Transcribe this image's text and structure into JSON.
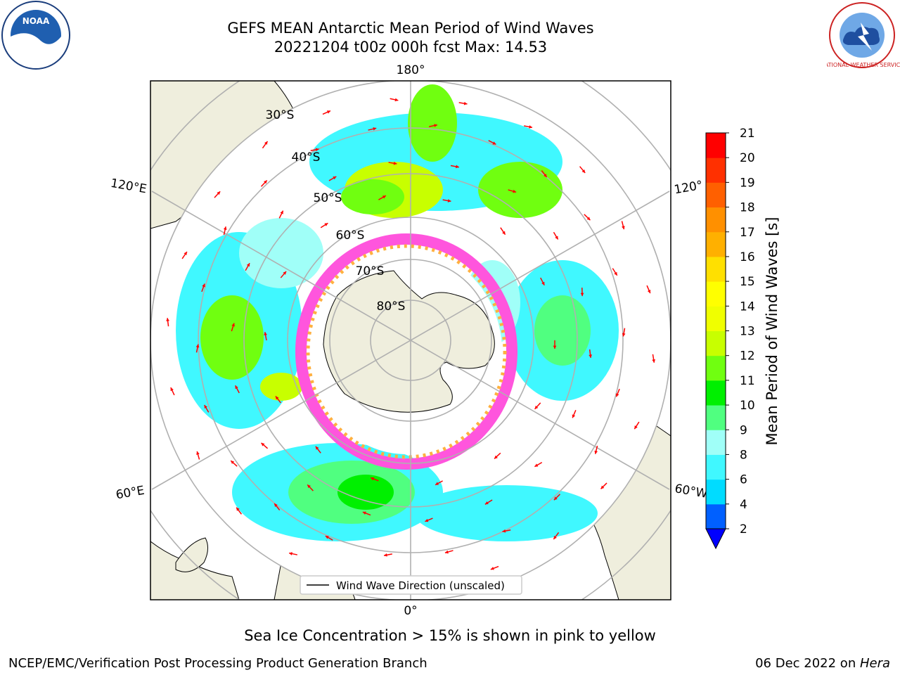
{
  "title_line1": "GEFS MEAN Antarctic Mean Period of Wind Waves",
  "title_line2": "20221204 t00z 000h fcst   Max: 14.53",
  "subtitle": "Sea Ice Concentration > 15% is shown in pink to yellow",
  "footer_left": "NCEP/EMC/Verification Post Processing Product Generation Branch",
  "footer_right_prefix": "06 Dec 2022 on ",
  "footer_right_host": "Hera",
  "logos": {
    "left": "NOAA",
    "right": "NATIONAL WEATHER SERVICE"
  },
  "map": {
    "projection": "south-polar-stereographic",
    "longitude_labels": [
      "180°",
      "0°",
      "120°E",
      "120°",
      "60°E",
      "60°W"
    ],
    "latitude_labels": [
      "30°S",
      "40°S",
      "50°S",
      "60°S",
      "70°S",
      "80°S"
    ],
    "legend_label": "Wind Wave Direction (unscaled)"
  },
  "colorbar": {
    "label": "Mean Period of Wind Waves [s]",
    "ticks": [
      "2",
      "4",
      "6",
      "8",
      "9",
      "10",
      "11",
      "12",
      "13",
      "14",
      "15",
      "16",
      "17",
      "18",
      "19",
      "20",
      "21"
    ],
    "colors": [
      "#0060ff",
      "#00dcff",
      "#40f8ff",
      "#a0fff8",
      "#50ff80",
      "#00f000",
      "#70ff10",
      "#c8ff00",
      "#f0ff00",
      "#ffff00",
      "#ffe000",
      "#ffb000",
      "#ff9000",
      "#ff6000",
      "#ff3000",
      "#ff0000"
    ],
    "under_color": "#0000ff"
  },
  "colors": {
    "land": "#efeedd",
    "ice_pink": "#ff55dd",
    "ice_orange": "#ffb040",
    "arrow": "#ff0000",
    "grid": "#b0b0b0"
  }
}
